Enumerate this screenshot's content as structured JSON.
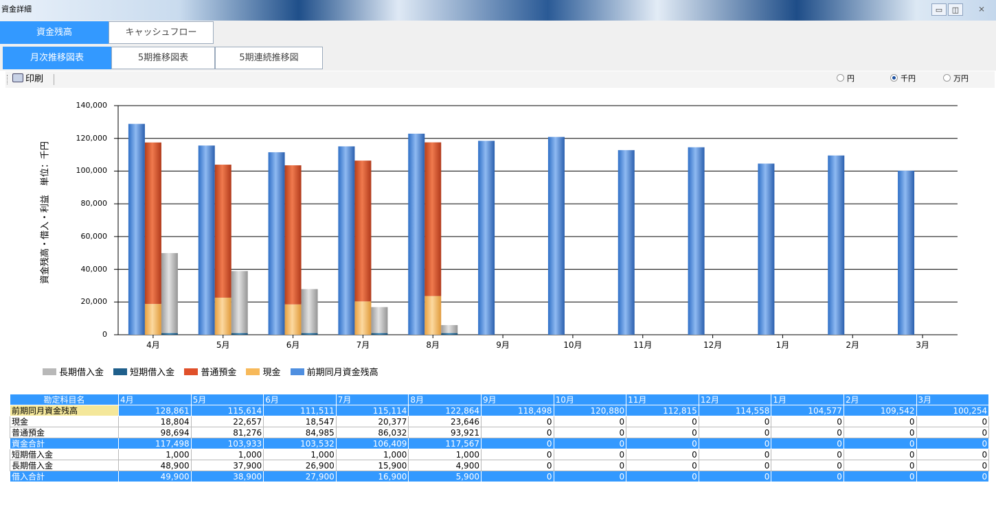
{
  "window": {
    "title": "資金詳細",
    "minimize_icon": "minimize-icon",
    "restore_icon": "restore-icon",
    "close_icon": "close-icon",
    "close_glyph": "⨯"
  },
  "main_tabs": [
    {
      "label": "資金残高",
      "active": true
    },
    {
      "label": "キャッシュフロー",
      "active": false
    }
  ],
  "sub_tabs": [
    {
      "label": "月次推移図表",
      "active": true
    },
    {
      "label": "5期推移図表",
      "active": false
    },
    {
      "label": "5期連続推移図",
      "active": false
    }
  ],
  "toolbar": {
    "print_label": "印刷",
    "print_icon": "printer-icon",
    "units": [
      {
        "label": "円",
        "selected": false
      },
      {
        "label": "千円",
        "selected": true
      },
      {
        "label": "万円",
        "selected": false
      }
    ]
  },
  "chart_data": {
    "type": "bar",
    "ylabel": "資金残高・借入・利益　単位：千円",
    "ylim": [
      0,
      140000
    ],
    "yticks": [
      "0",
      "20,000",
      "40,000",
      "60,000",
      "80,000",
      "100,000",
      "120,000",
      "140,000"
    ],
    "categories": [
      "4月",
      "5月",
      "6月",
      "7月",
      "8月",
      "9月",
      "10月",
      "11月",
      "12月",
      "1月",
      "2月",
      "3月"
    ],
    "series": [
      {
        "name": "前期同月資金残高",
        "color": "#4f8fe0",
        "values": [
          128861,
          115614,
          111511,
          115114,
          122864,
          118498,
          120880,
          112815,
          114558,
          104577,
          109542,
          100254
        ]
      },
      {
        "name": "現金",
        "color": "#f7b95a",
        "values": [
          18804,
          22657,
          18547,
          20377,
          23646,
          0,
          0,
          0,
          0,
          0,
          0,
          0
        ]
      },
      {
        "name": "普通預金",
        "color": "#e0502a",
        "values": [
          98694,
          81276,
          84985,
          86032,
          93921,
          0,
          0,
          0,
          0,
          0,
          0,
          0
        ]
      },
      {
        "name": "短期借入金",
        "color": "#1f5f8b",
        "values": [
          1000,
          1000,
          1000,
          1000,
          1000,
          0,
          0,
          0,
          0,
          0,
          0,
          0
        ]
      },
      {
        "name": "長期借入金",
        "color": "#b8b8b8",
        "values": [
          48900,
          37900,
          26900,
          15900,
          4900,
          0,
          0,
          0,
          0,
          0,
          0,
          0
        ]
      }
    ],
    "legend": [
      "長期借入金",
      "短期借入金",
      "普通預金",
      "現金",
      "前期同月資金残高"
    ],
    "legend_placement": "bottom-left",
    "grid": true
  },
  "table": {
    "header": [
      "勘定科目名",
      "4月",
      "5月",
      "6月",
      "7月",
      "8月",
      "9月",
      "10月",
      "11月",
      "12月",
      "1月",
      "2月",
      "3月"
    ],
    "rows": [
      {
        "style": "hl",
        "label": "前期同月資金残高",
        "values": [
          "128,861",
          "115,614",
          "111,511",
          "115,114",
          "122,864",
          "118,498",
          "120,880",
          "112,815",
          "114,558",
          "104,577",
          "109,542",
          "100,254"
        ]
      },
      {
        "style": "",
        "label": "現金",
        "values": [
          "18,804",
          "22,657",
          "18,547",
          "20,377",
          "23,646",
          "0",
          "0",
          "0",
          "0",
          "0",
          "0",
          "0"
        ]
      },
      {
        "style": "",
        "label": "普通預金",
        "values": [
          "98,694",
          "81,276",
          "84,985",
          "86,032",
          "93,921",
          "0",
          "0",
          "0",
          "0",
          "0",
          "0",
          "0"
        ]
      },
      {
        "style": "tot",
        "label": "資金合計",
        "values": [
          "117,498",
          "103,933",
          "103,532",
          "106,409",
          "117,567",
          "0",
          "0",
          "0",
          "0",
          "0",
          "0",
          "0"
        ]
      },
      {
        "style": "",
        "label": "短期借入金",
        "values": [
          "1,000",
          "1,000",
          "1,000",
          "1,000",
          "1,000",
          "0",
          "0",
          "0",
          "0",
          "0",
          "0",
          "0"
        ]
      },
      {
        "style": "",
        "label": "長期借入金",
        "values": [
          "48,900",
          "37,900",
          "26,900",
          "15,900",
          "4,900",
          "0",
          "0",
          "0",
          "0",
          "0",
          "0",
          "0"
        ]
      },
      {
        "style": "tot",
        "label": "借入合計",
        "values": [
          "49,900",
          "38,900",
          "27,900",
          "16,900",
          "5,900",
          "0",
          "0",
          "0",
          "0",
          "0",
          "0",
          "0"
        ]
      }
    ]
  }
}
